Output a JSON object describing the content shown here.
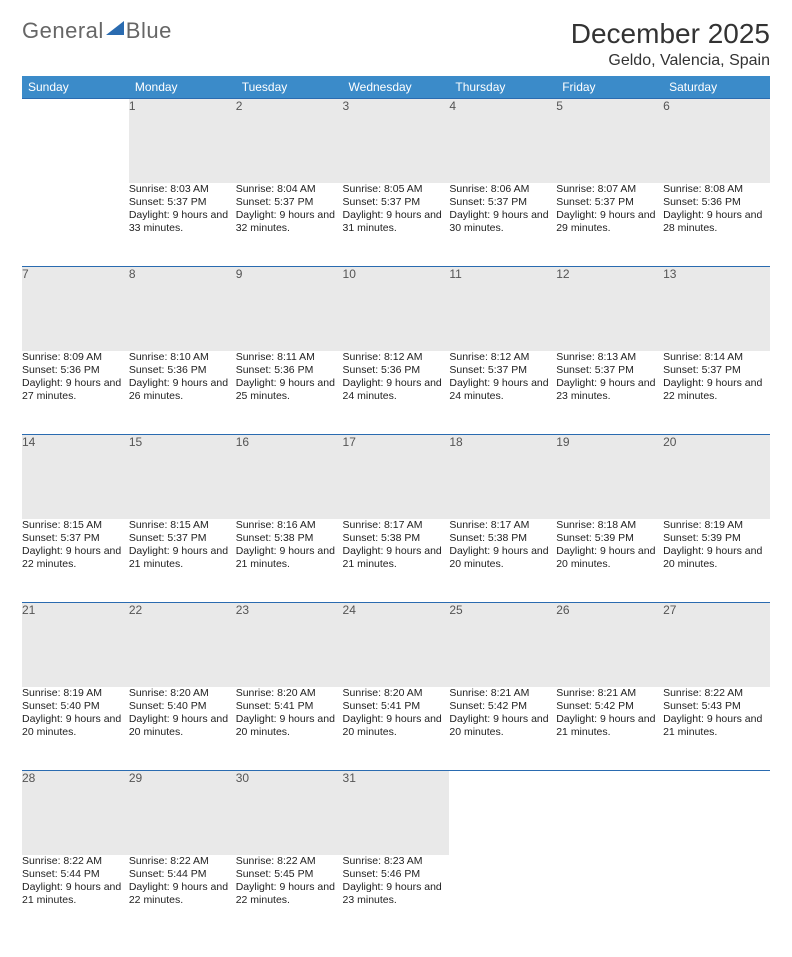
{
  "brand": {
    "part1": "General",
    "part2": "Blue"
  },
  "title": "December 2025",
  "location": "Geldo, Valencia, Spain",
  "colors": {
    "header_bg": "#3b8bc9",
    "header_text": "#ffffff",
    "daynum_bg": "#e9e9e9",
    "rule": "#2a6bb0",
    "logo_accent": "#2a6bb0"
  },
  "weekdays": [
    "Sunday",
    "Monday",
    "Tuesday",
    "Wednesday",
    "Thursday",
    "Friday",
    "Saturday"
  ],
  "weeks": [
    {
      "days": [
        {
          "n": "",
          "sunrise": "",
          "sunset": "",
          "daylight": ""
        },
        {
          "n": "1",
          "sunrise": "Sunrise: 8:03 AM",
          "sunset": "Sunset: 5:37 PM",
          "daylight": "Daylight: 9 hours and 33 minutes."
        },
        {
          "n": "2",
          "sunrise": "Sunrise: 8:04 AM",
          "sunset": "Sunset: 5:37 PM",
          "daylight": "Daylight: 9 hours and 32 minutes."
        },
        {
          "n": "3",
          "sunrise": "Sunrise: 8:05 AM",
          "sunset": "Sunset: 5:37 PM",
          "daylight": "Daylight: 9 hours and 31 minutes."
        },
        {
          "n": "4",
          "sunrise": "Sunrise: 8:06 AM",
          "sunset": "Sunset: 5:37 PM",
          "daylight": "Daylight: 9 hours and 30 minutes."
        },
        {
          "n": "5",
          "sunrise": "Sunrise: 8:07 AM",
          "sunset": "Sunset: 5:37 PM",
          "daylight": "Daylight: 9 hours and 29 minutes."
        },
        {
          "n": "6",
          "sunrise": "Sunrise: 8:08 AM",
          "sunset": "Sunset: 5:36 PM",
          "daylight": "Daylight: 9 hours and 28 minutes."
        }
      ]
    },
    {
      "days": [
        {
          "n": "7",
          "sunrise": "Sunrise: 8:09 AM",
          "sunset": "Sunset: 5:36 PM",
          "daylight": "Daylight: 9 hours and 27 minutes."
        },
        {
          "n": "8",
          "sunrise": "Sunrise: 8:10 AM",
          "sunset": "Sunset: 5:36 PM",
          "daylight": "Daylight: 9 hours and 26 minutes."
        },
        {
          "n": "9",
          "sunrise": "Sunrise: 8:11 AM",
          "sunset": "Sunset: 5:36 PM",
          "daylight": "Daylight: 9 hours and 25 minutes."
        },
        {
          "n": "10",
          "sunrise": "Sunrise: 8:12 AM",
          "sunset": "Sunset: 5:36 PM",
          "daylight": "Daylight: 9 hours and 24 minutes."
        },
        {
          "n": "11",
          "sunrise": "Sunrise: 8:12 AM",
          "sunset": "Sunset: 5:37 PM",
          "daylight": "Daylight: 9 hours and 24 minutes."
        },
        {
          "n": "12",
          "sunrise": "Sunrise: 8:13 AM",
          "sunset": "Sunset: 5:37 PM",
          "daylight": "Daylight: 9 hours and 23 minutes."
        },
        {
          "n": "13",
          "sunrise": "Sunrise: 8:14 AM",
          "sunset": "Sunset: 5:37 PM",
          "daylight": "Daylight: 9 hours and 22 minutes."
        }
      ]
    },
    {
      "days": [
        {
          "n": "14",
          "sunrise": "Sunrise: 8:15 AM",
          "sunset": "Sunset: 5:37 PM",
          "daylight": "Daylight: 9 hours and 22 minutes."
        },
        {
          "n": "15",
          "sunrise": "Sunrise: 8:15 AM",
          "sunset": "Sunset: 5:37 PM",
          "daylight": "Daylight: 9 hours and 21 minutes."
        },
        {
          "n": "16",
          "sunrise": "Sunrise: 8:16 AM",
          "sunset": "Sunset: 5:38 PM",
          "daylight": "Daylight: 9 hours and 21 minutes."
        },
        {
          "n": "17",
          "sunrise": "Sunrise: 8:17 AM",
          "sunset": "Sunset: 5:38 PM",
          "daylight": "Daylight: 9 hours and 21 minutes."
        },
        {
          "n": "18",
          "sunrise": "Sunrise: 8:17 AM",
          "sunset": "Sunset: 5:38 PM",
          "daylight": "Daylight: 9 hours and 20 minutes."
        },
        {
          "n": "19",
          "sunrise": "Sunrise: 8:18 AM",
          "sunset": "Sunset: 5:39 PM",
          "daylight": "Daylight: 9 hours and 20 minutes."
        },
        {
          "n": "20",
          "sunrise": "Sunrise: 8:19 AM",
          "sunset": "Sunset: 5:39 PM",
          "daylight": "Daylight: 9 hours and 20 minutes."
        }
      ]
    },
    {
      "days": [
        {
          "n": "21",
          "sunrise": "Sunrise: 8:19 AM",
          "sunset": "Sunset: 5:40 PM",
          "daylight": "Daylight: 9 hours and 20 minutes."
        },
        {
          "n": "22",
          "sunrise": "Sunrise: 8:20 AM",
          "sunset": "Sunset: 5:40 PM",
          "daylight": "Daylight: 9 hours and 20 minutes."
        },
        {
          "n": "23",
          "sunrise": "Sunrise: 8:20 AM",
          "sunset": "Sunset: 5:41 PM",
          "daylight": "Daylight: 9 hours and 20 minutes."
        },
        {
          "n": "24",
          "sunrise": "Sunrise: 8:20 AM",
          "sunset": "Sunset: 5:41 PM",
          "daylight": "Daylight: 9 hours and 20 minutes."
        },
        {
          "n": "25",
          "sunrise": "Sunrise: 8:21 AM",
          "sunset": "Sunset: 5:42 PM",
          "daylight": "Daylight: 9 hours and 20 minutes."
        },
        {
          "n": "26",
          "sunrise": "Sunrise: 8:21 AM",
          "sunset": "Sunset: 5:42 PM",
          "daylight": "Daylight: 9 hours and 21 minutes."
        },
        {
          "n": "27",
          "sunrise": "Sunrise: 8:22 AM",
          "sunset": "Sunset: 5:43 PM",
          "daylight": "Daylight: 9 hours and 21 minutes."
        }
      ]
    },
    {
      "days": [
        {
          "n": "28",
          "sunrise": "Sunrise: 8:22 AM",
          "sunset": "Sunset: 5:44 PM",
          "daylight": "Daylight: 9 hours and 21 minutes."
        },
        {
          "n": "29",
          "sunrise": "Sunrise: 8:22 AM",
          "sunset": "Sunset: 5:44 PM",
          "daylight": "Daylight: 9 hours and 22 minutes."
        },
        {
          "n": "30",
          "sunrise": "Sunrise: 8:22 AM",
          "sunset": "Sunset: 5:45 PM",
          "daylight": "Daylight: 9 hours and 22 minutes."
        },
        {
          "n": "31",
          "sunrise": "Sunrise: 8:23 AM",
          "sunset": "Sunset: 5:46 PM",
          "daylight": "Daylight: 9 hours and 23 minutes."
        },
        {
          "n": "",
          "sunrise": "",
          "sunset": "",
          "daylight": ""
        },
        {
          "n": "",
          "sunrise": "",
          "sunset": "",
          "daylight": ""
        },
        {
          "n": "",
          "sunrise": "",
          "sunset": "",
          "daylight": ""
        }
      ]
    }
  ]
}
